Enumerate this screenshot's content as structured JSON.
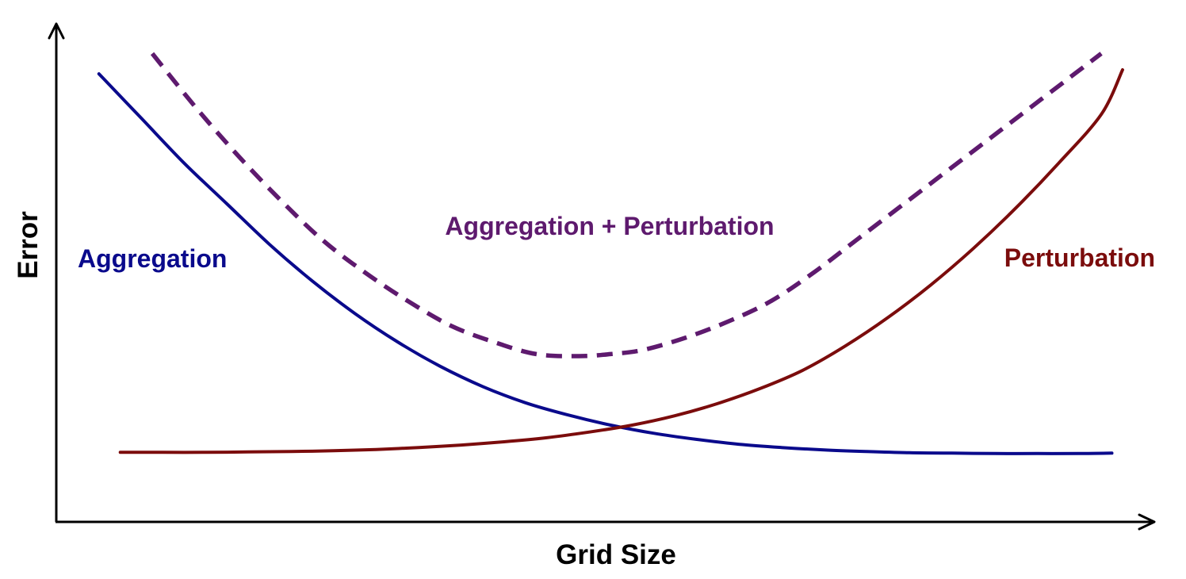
{
  "chart_data": {
    "type": "line",
    "title": "",
    "xlabel": "Grid Size",
    "ylabel": "Error",
    "xlim": [
      0,
      1
    ],
    "ylim": [
      0,
      1
    ],
    "grid": false,
    "ticks_shown": false,
    "legend": "inline-labels",
    "series": [
      {
        "name": "Aggregation",
        "color": "#0a0a8c",
        "style": "solid",
        "x": [
          0.04,
          0.08,
          0.12,
          0.16,
          0.2,
          0.24,
          0.28,
          0.32,
          0.36,
          0.4,
          0.44,
          0.48,
          0.52,
          0.56,
          0.6,
          0.64,
          0.68,
          0.72,
          0.76,
          0.8,
          0.84,
          0.88,
          0.92,
          0.96,
          0.99
        ],
        "y": [
          0.99,
          0.88,
          0.77,
          0.67,
          0.57,
          0.48,
          0.4,
          0.33,
          0.27,
          0.22,
          0.18,
          0.15,
          0.125,
          0.105,
          0.09,
          0.078,
          0.07,
          0.064,
          0.06,
          0.057,
          0.056,
          0.055,
          0.055,
          0.055,
          0.056
        ]
      },
      {
        "name": "Perturbation",
        "color": "#7b0c0c",
        "style": "solid",
        "x": [
          0.06,
          0.1,
          0.14,
          0.18,
          0.22,
          0.26,
          0.3,
          0.34,
          0.38,
          0.42,
          0.46,
          0.5,
          0.54,
          0.58,
          0.62,
          0.66,
          0.7,
          0.74,
          0.78,
          0.82,
          0.86,
          0.9,
          0.94,
          0.98,
          1.0
        ],
        "y": [
          0.058,
          0.058,
          0.058,
          0.059,
          0.06,
          0.062,
          0.065,
          0.07,
          0.076,
          0.084,
          0.094,
          0.108,
          0.125,
          0.148,
          0.178,
          0.215,
          0.26,
          0.32,
          0.39,
          0.47,
          0.56,
          0.66,
          0.77,
          0.89,
          1.0
        ]
      },
      {
        "name": "Aggregation + Perturbation",
        "color": "#5e1a6e",
        "style": "dashed",
        "x": [
          0.09,
          0.13,
          0.17,
          0.21,
          0.25,
          0.29,
          0.33,
          0.37,
          0.41,
          0.45,
          0.49,
          0.52,
          0.55,
          0.59,
          0.63,
          0.67,
          0.71,
          0.75,
          0.79,
          0.83,
          0.87,
          0.91,
          0.95,
          0.98
        ],
        "y": [
          1.04,
          0.91,
          0.79,
          0.68,
          0.58,
          0.5,
          0.43,
          0.37,
          0.33,
          0.3,
          0.295,
          0.3,
          0.31,
          0.34,
          0.38,
          0.43,
          0.5,
          0.58,
          0.66,
          0.74,
          0.82,
          0.9,
          0.98,
          1.04
        ]
      }
    ]
  }
}
